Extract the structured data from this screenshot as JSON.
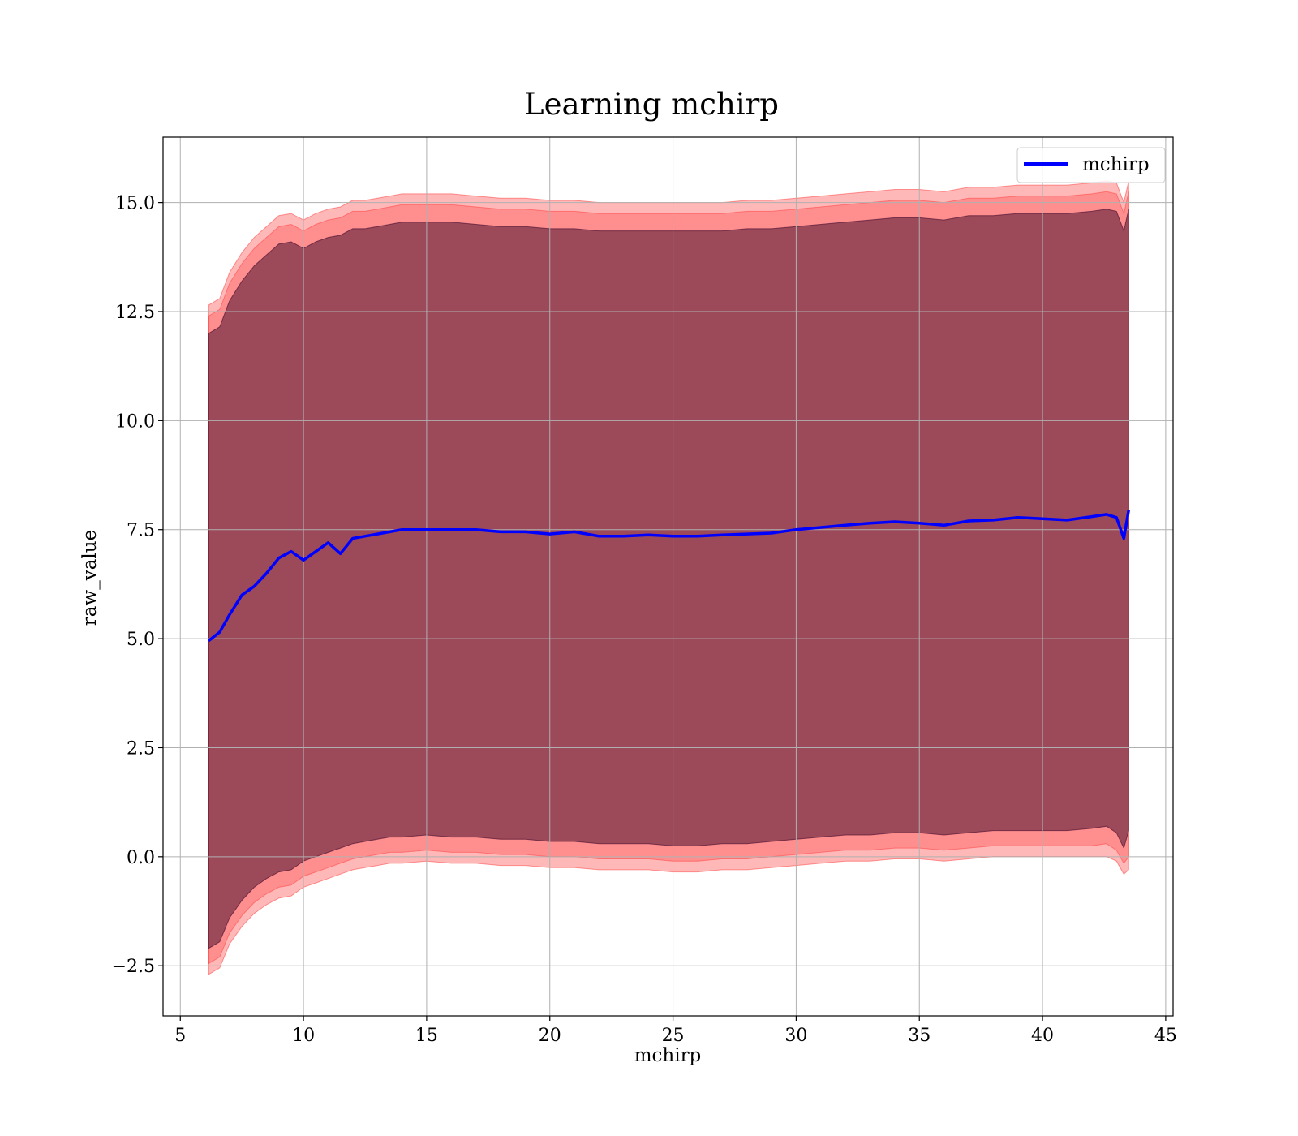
{
  "chart_data": {
    "type": "line",
    "title": "Learning mchirp",
    "xlabel": "mchirp",
    "ylabel": "raw_value",
    "xlim": [
      4.3,
      45.3
    ],
    "ylim": [
      -3.65,
      16.5
    ],
    "xticks": [
      5,
      10,
      15,
      20,
      25,
      30,
      35,
      40,
      45
    ],
    "yticks": [
      -2.5,
      0.0,
      2.5,
      5.0,
      7.5,
      10.0,
      12.5,
      15.0
    ],
    "ytick_labels": [
      "−2.5",
      "0.0",
      "2.5",
      "5.0",
      "7.5",
      "10.0",
      "12.5",
      "15.0"
    ],
    "grid": true,
    "legend_position": "top-right",
    "x": [
      6.15,
      6.6,
      7.0,
      7.5,
      8.0,
      8.5,
      9.0,
      9.5,
      10.0,
      10.5,
      11.0,
      11.5,
      12.0,
      12.5,
      13.0,
      13.5,
      14.0,
      15.0,
      16.0,
      17.0,
      18.0,
      19.0,
      20.0,
      21.0,
      22.0,
      23.0,
      24.0,
      25.0,
      26.0,
      27.0,
      28.0,
      29.0,
      30.0,
      31.0,
      32.0,
      33.0,
      34.0,
      35.0,
      36.0,
      37.0,
      38.0,
      39.0,
      40.0,
      41.0,
      42.0,
      42.6,
      43.0,
      43.3,
      43.5
    ],
    "series": [
      {
        "name": "mchirp",
        "color": "#0000ff",
        "values": [
          4.95,
          5.15,
          5.55,
          6.0,
          6.2,
          6.5,
          6.85,
          7.0,
          6.8,
          7.0,
          7.2,
          6.95,
          7.3,
          7.35,
          7.4,
          7.45,
          7.5,
          7.5,
          7.5,
          7.5,
          7.45,
          7.45,
          7.4,
          7.45,
          7.35,
          7.35,
          7.38,
          7.35,
          7.35,
          7.38,
          7.4,
          7.42,
          7.5,
          7.55,
          7.6,
          7.65,
          7.68,
          7.65,
          7.6,
          7.7,
          7.72,
          7.78,
          7.75,
          7.72,
          7.8,
          7.85,
          7.78,
          7.3,
          7.95
        ]
      }
    ],
    "bands": [
      {
        "color": "#ff0000",
        "opacity": 0.28,
        "lower": [
          -2.7,
          -2.55,
          -2.0,
          -1.6,
          -1.3,
          -1.1,
          -0.95,
          -0.9,
          -0.7,
          -0.6,
          -0.5,
          -0.4,
          -0.3,
          -0.25,
          -0.2,
          -0.15,
          -0.15,
          -0.1,
          -0.15,
          -0.15,
          -0.2,
          -0.2,
          -0.25,
          -0.25,
          -0.3,
          -0.3,
          -0.3,
          -0.35,
          -0.35,
          -0.3,
          -0.3,
          -0.25,
          -0.2,
          -0.15,
          -0.1,
          -0.1,
          -0.05,
          -0.05,
          -0.1,
          -0.05,
          0.0,
          0.0,
          0.0,
          0.0,
          0.0,
          0.0,
          -0.1,
          -0.4,
          -0.3
        ],
        "upper": [
          12.65,
          12.8,
          13.4,
          13.85,
          14.2,
          14.45,
          14.7,
          14.75,
          14.6,
          14.75,
          14.85,
          14.9,
          15.05,
          15.05,
          15.1,
          15.15,
          15.2,
          15.2,
          15.2,
          15.15,
          15.1,
          15.1,
          15.05,
          15.05,
          15.0,
          15.0,
          15.0,
          15.0,
          15.0,
          15.0,
          15.05,
          15.05,
          15.1,
          15.15,
          15.2,
          15.25,
          15.3,
          15.3,
          15.25,
          15.35,
          15.35,
          15.4,
          15.4,
          15.4,
          15.45,
          15.5,
          15.45,
          15.0,
          15.5
        ]
      },
      {
        "color": "#ff0000",
        "opacity": 0.22,
        "lower": [
          -2.45,
          -2.3,
          -1.75,
          -1.35,
          -1.05,
          -0.85,
          -0.7,
          -0.65,
          -0.45,
          -0.35,
          -0.25,
          -0.15,
          -0.05,
          0.0,
          0.05,
          0.1,
          0.1,
          0.15,
          0.1,
          0.1,
          0.05,
          0.05,
          0.0,
          0.0,
          -0.05,
          -0.05,
          -0.05,
          -0.1,
          -0.1,
          -0.05,
          -0.05,
          0.0,
          0.05,
          0.1,
          0.15,
          0.15,
          0.2,
          0.2,
          0.15,
          0.2,
          0.25,
          0.25,
          0.25,
          0.25,
          0.25,
          0.3,
          0.15,
          -0.15,
          0.0
        ],
        "upper": [
          12.4,
          12.55,
          13.15,
          13.6,
          13.95,
          14.2,
          14.45,
          14.5,
          14.35,
          14.5,
          14.6,
          14.65,
          14.8,
          14.8,
          14.85,
          14.9,
          14.95,
          14.95,
          14.95,
          14.9,
          14.85,
          14.85,
          14.8,
          14.8,
          14.75,
          14.75,
          14.75,
          14.75,
          14.75,
          14.75,
          14.8,
          14.8,
          14.85,
          14.9,
          14.95,
          15.0,
          15.05,
          15.05,
          15.0,
          15.1,
          15.1,
          15.15,
          15.15,
          15.15,
          15.2,
          15.25,
          15.2,
          14.75,
          15.25
        ]
      },
      {
        "color": "#4a1030",
        "opacity": 0.55,
        "lower": [
          -2.1,
          -1.95,
          -1.4,
          -1.0,
          -0.7,
          -0.5,
          -0.35,
          -0.3,
          -0.1,
          0.0,
          0.1,
          0.2,
          0.3,
          0.35,
          0.4,
          0.45,
          0.45,
          0.5,
          0.45,
          0.45,
          0.4,
          0.4,
          0.35,
          0.35,
          0.3,
          0.3,
          0.3,
          0.25,
          0.25,
          0.3,
          0.3,
          0.35,
          0.4,
          0.45,
          0.5,
          0.5,
          0.55,
          0.55,
          0.5,
          0.55,
          0.6,
          0.6,
          0.6,
          0.6,
          0.65,
          0.7,
          0.55,
          0.2,
          0.6
        ],
        "upper": [
          12.0,
          12.15,
          12.75,
          13.2,
          13.55,
          13.8,
          14.05,
          14.1,
          13.95,
          14.1,
          14.2,
          14.25,
          14.4,
          14.4,
          14.45,
          14.5,
          14.55,
          14.55,
          14.55,
          14.5,
          14.45,
          14.45,
          14.4,
          14.4,
          14.35,
          14.35,
          14.35,
          14.35,
          14.35,
          14.35,
          14.4,
          14.4,
          14.45,
          14.5,
          14.55,
          14.6,
          14.65,
          14.65,
          14.6,
          14.7,
          14.7,
          14.75,
          14.75,
          14.75,
          14.8,
          14.85,
          14.8,
          14.35,
          14.85
        ]
      }
    ]
  }
}
